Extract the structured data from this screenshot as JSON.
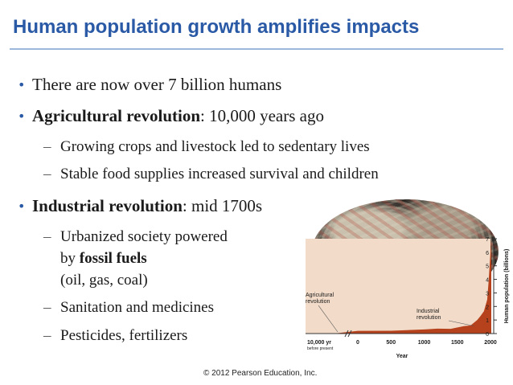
{
  "slide": {
    "title": "Human population growth amplifies impacts",
    "bullets": [
      {
        "text": "There are now over 7 billion humans"
      },
      {
        "bold": "Agricultural revolution",
        "rest": ": 10,000 years ago",
        "subs": [
          "Growing crops and livestock led to sedentary lives",
          "Stable food supplies increased survival and children"
        ]
      },
      {
        "bold": "Industrial revolution",
        "rest": ": mid 1700s",
        "subs": [
          "Urbanized society powered",
          "by ",
          "fossil fuels",
          "(oil, gas, coal)",
          "Sanitation and medicines",
          "Pesticides, fertilizers"
        ]
      }
    ],
    "bullet_glyph": "•",
    "dash_glyph": "–",
    "copyright": "© 2012 Pearson Education, Inc."
  },
  "colors": {
    "title": "#2a5aa6",
    "area_fill": "#b5421c",
    "axis_bg": "#f2dcc9"
  },
  "chart_data": {
    "type": "area",
    "title": "",
    "xlabel": "Year",
    "ylabel": "Human population (billions)",
    "x_tick_labels": [
      "10,000 yr before present",
      "0",
      "500",
      "1000",
      "1500",
      "2000"
    ],
    "x_ticks": [
      -10000,
      0,
      500,
      1000,
      1500,
      2000
    ],
    "y_ticks": [
      0,
      1,
      2,
      3,
      4,
      5,
      6,
      7
    ],
    "ylim": [
      0,
      7
    ],
    "x": [
      -10000,
      -5000,
      0,
      500,
      1000,
      1200,
      1400,
      1600,
      1700,
      1750,
      1800,
      1850,
      1900,
      1950,
      1970,
      1990,
      2000,
      2012
    ],
    "y": [
      0.005,
      0.02,
      0.2,
      0.21,
      0.3,
      0.36,
      0.35,
      0.55,
      0.6,
      0.8,
      1.0,
      1.3,
      1.65,
      2.5,
      3.7,
      5.3,
      6.1,
      7.0
    ],
    "annotations": [
      {
        "text": "Agricultural revolution"
      },
      {
        "text": "Industrial revolution"
      }
    ]
  }
}
